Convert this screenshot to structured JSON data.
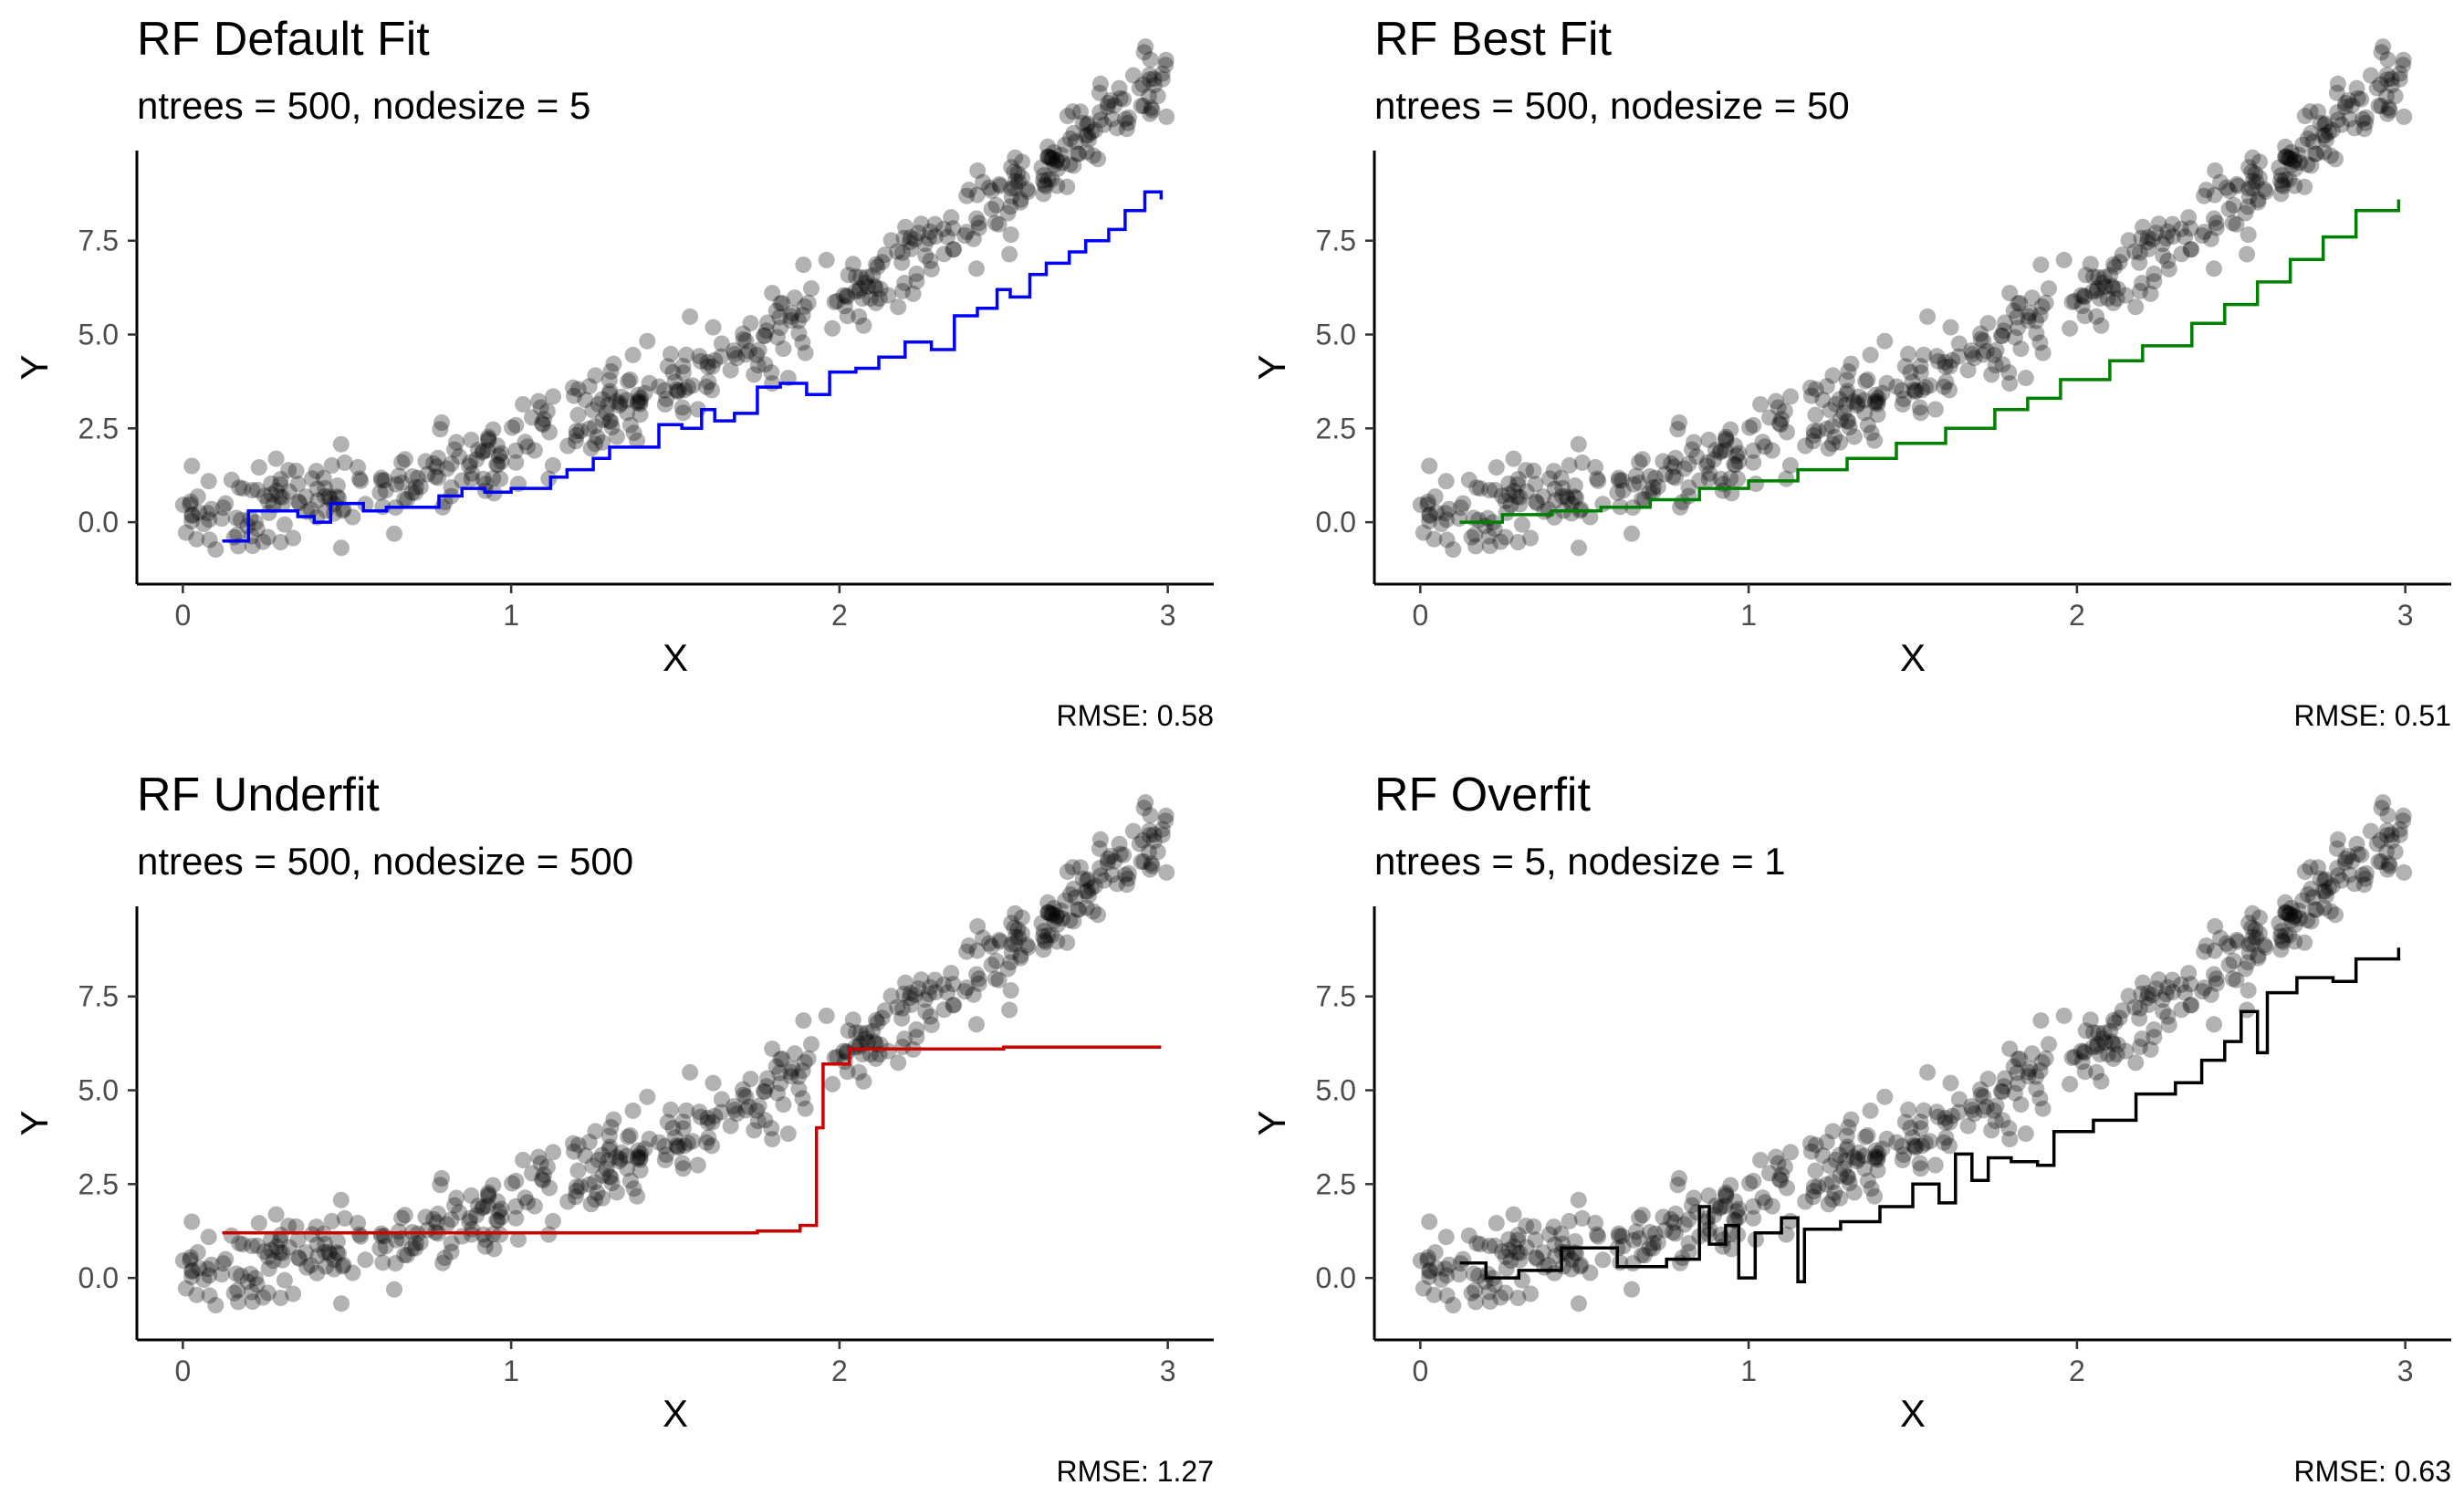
{
  "figure": {
    "layout": "2x2 grid"
  },
  "chart_data": [
    {
      "type": "scatter",
      "title": "RF Default Fit",
      "subtitle": "ntrees = 500, nodesize = 5",
      "xlabel": "X",
      "ylabel": "Y",
      "xticks": [
        "0",
        "1",
        "2",
        "3"
      ],
      "yticks": [
        "0.0",
        "2.5",
        "5.0",
        "7.5"
      ],
      "xlim": [
        -0.14,
        3.14
      ],
      "ylim": [
        -1.65,
        9.9
      ],
      "grid": false,
      "caption": "RMSE:  0.58",
      "points": {
        "generator": "y = x^2 + x + noise",
        "n": 500,
        "x_range": [
          0,
          3
        ],
        "color": "#000000",
        "opacity": 0.3
      },
      "fit": {
        "color": "#0000ff",
        "x": [
          0.12,
          0.2,
          0.35,
          0.4,
          0.45,
          0.55,
          0.62,
          0.78,
          0.85,
          0.92,
          1.0,
          1.12,
          1.17,
          1.25,
          1.3,
          1.45,
          1.52,
          1.58,
          1.62,
          1.68,
          1.75,
          1.82,
          1.9,
          1.97,
          2.05,
          2.12,
          2.2,
          2.28,
          2.35,
          2.42,
          2.48,
          2.52,
          2.58,
          2.63,
          2.7,
          2.75,
          2.82,
          2.87,
          2.93,
          2.98
        ],
        "y": [
          -0.5,
          0.3,
          0.15,
          0.0,
          0.5,
          0.3,
          0.4,
          0.7,
          0.9,
          0.8,
          0.9,
          1.2,
          1.4,
          1.7,
          2.0,
          2.6,
          2.5,
          3.0,
          2.7,
          2.9,
          3.6,
          3.7,
          3.4,
          4.0,
          4.1,
          4.4,
          4.8,
          4.6,
          5.5,
          5.7,
          6.2,
          6.0,
          6.6,
          6.9,
          7.2,
          7.5,
          7.8,
          8.3,
          8.8,
          8.6
        ]
      }
    },
    {
      "type": "scatter",
      "title": "RF Best Fit",
      "subtitle": "ntrees = 500, nodesize = 50",
      "xlabel": "X",
      "ylabel": "Y",
      "xticks": [
        "0",
        "1",
        "2",
        "3"
      ],
      "yticks": [
        "0.0",
        "2.5",
        "5.0",
        "7.5"
      ],
      "xlim": [
        -0.14,
        3.14
      ],
      "ylim": [
        -1.65,
        9.9
      ],
      "grid": false,
      "caption": "RMSE:  0.51",
      "points": {
        "generator": "y = x^2 + x + noise",
        "n": 500,
        "x_range": [
          0,
          3
        ],
        "color": "#000000",
        "opacity": 0.3
      },
      "fit": {
        "color": "#008000",
        "x": [
          0.12,
          0.25,
          0.4,
          0.55,
          0.7,
          0.85,
          1.0,
          1.15,
          1.3,
          1.45,
          1.6,
          1.75,
          1.85,
          1.95,
          2.1,
          2.2,
          2.35,
          2.45,
          2.55,
          2.65,
          2.75,
          2.85,
          2.98
        ],
        "y": [
          0.0,
          0.2,
          0.3,
          0.4,
          0.6,
          0.9,
          1.1,
          1.4,
          1.7,
          2.1,
          2.5,
          3.0,
          3.3,
          3.8,
          4.3,
          4.7,
          5.3,
          5.8,
          6.4,
          7.0,
          7.6,
          8.3,
          8.6
        ]
      }
    },
    {
      "type": "scatter",
      "title": "RF Underfit",
      "subtitle": "ntrees = 500, nodesize = 500",
      "xlabel": "X",
      "ylabel": "Y",
      "xticks": [
        "0",
        "1",
        "2",
        "3"
      ],
      "yticks": [
        "0.0",
        "2.5",
        "5.0",
        "7.5"
      ],
      "xlim": [
        -0.14,
        3.14
      ],
      "ylim": [
        -1.65,
        9.9
      ],
      "grid": false,
      "caption": "RMSE:  1.27",
      "points": {
        "generator": "y = x^2 + x + noise",
        "n": 500,
        "x_range": [
          0,
          3
        ],
        "color": "#000000",
        "opacity": 0.3
      },
      "fit": {
        "color": "#cd0000",
        "x": [
          0.12,
          0.6,
          1.2,
          1.75,
          1.88,
          1.93,
          1.95,
          2.03,
          2.5,
          2.98
        ],
        "y": [
          1.2,
          1.2,
          1.2,
          1.25,
          1.4,
          4.0,
          5.7,
          6.1,
          6.15,
          6.15
        ]
      }
    },
    {
      "type": "scatter",
      "title": "RF Overfit",
      "subtitle": "ntrees = 5, nodesize = 1",
      "xlabel": "X",
      "ylabel": "Y",
      "xticks": [
        "0",
        "1",
        "2",
        "3"
      ],
      "yticks": [
        "0.0",
        "2.5",
        "5.0",
        "7.5"
      ],
      "xlim": [
        -0.14,
        3.14
      ],
      "ylim": [
        -1.65,
        9.9
      ],
      "grid": false,
      "caption": "RMSE:  0.63",
      "points": {
        "generator": "y = x^2 + x + noise",
        "n": 500,
        "x_range": [
          0,
          3
        ],
        "color": "#000000",
        "opacity": 0.3
      },
      "fit": {
        "color": "#000000",
        "x": [
          0.12,
          0.2,
          0.3,
          0.43,
          0.6,
          0.75,
          0.85,
          0.88,
          0.93,
          0.97,
          1.02,
          1.1,
          1.15,
          1.17,
          1.28,
          1.4,
          1.5,
          1.58,
          1.63,
          1.68,
          1.73,
          1.8,
          1.88,
          1.93,
          2.05,
          2.18,
          2.3,
          2.38,
          2.45,
          2.5,
          2.55,
          2.58,
          2.67,
          2.78,
          2.85,
          2.98
        ],
        "y": [
          0.4,
          0.0,
          0.2,
          0.8,
          0.3,
          0.5,
          1.9,
          0.9,
          1.4,
          0.0,
          1.2,
          1.6,
          -0.1,
          1.3,
          1.5,
          1.9,
          2.5,
          2.0,
          3.3,
          2.6,
          3.2,
          3.1,
          3.0,
          3.9,
          4.2,
          4.9,
          5.2,
          5.8,
          6.3,
          7.1,
          6.0,
          7.6,
          8.0,
          7.9,
          8.5,
          8.8
        ]
      }
    }
  ]
}
